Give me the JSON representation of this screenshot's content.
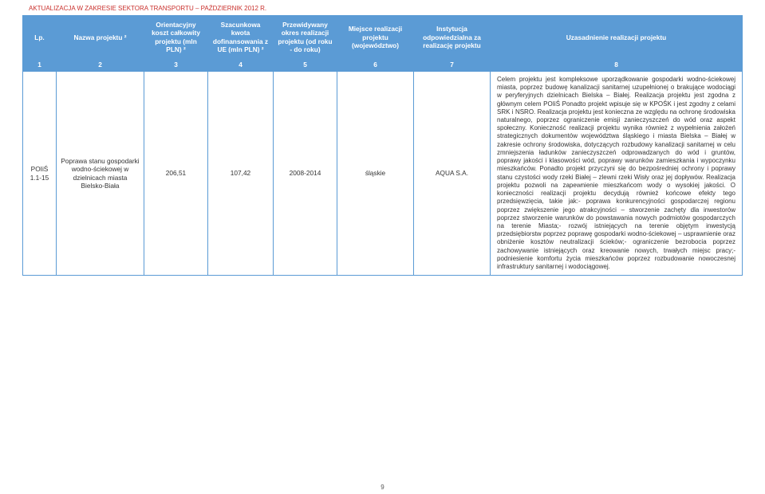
{
  "doc_title": "AKTUALIZACJA W ZAKRESIE SEKTORA TRANSPORTU – PAŹDZIERNIK 2012 R.",
  "page_number": "9",
  "headers": {
    "c1": "Lp.",
    "c2": "Nazwa projektu ²",
    "c3": "Orientacyjny koszt całkowity projektu (mln PLN) ²",
    "c4": "Szacunkowa kwota dofinansowania z UE (mln PLN) ²",
    "c5": "Przewidywany okres realizacji projektu (od roku - do roku)",
    "c6": "Miejsce realizacji projektu (województwo)",
    "c7": "Instytucja odpowiedzialna za realizację projektu",
    "c8": "Uzasadnienie realizacji projektu"
  },
  "index_row": {
    "c1": "1",
    "c2": "2",
    "c3": "3",
    "c4": "4",
    "c5": "5",
    "c6": "6",
    "c7": "7",
    "c8": "8"
  },
  "row": {
    "lp": "POIiŚ 1.1-15",
    "name": "Poprawa stanu gospodarki wodno-ściekowej w dzielnicach miasta Bielsko-Biała",
    "cost": "206,51",
    "eu": "107,42",
    "period": "2008-2014",
    "region": "śląskie",
    "inst": "AQUA S.A.",
    "justification": "Celem projektu jest kompleksowe uporządkowanie gospodarki wodno-ściekowej miasta, poprzez budowę kanalizacji sanitarnej uzupełnionej o brakujące wodociągi w peryferyjnych dzielnicach Bielska – Białej. Realizacja projektu jest zgodna z głównym celem POIiŚ Ponadto projekt wpisuje się w KPOŚK i jest zgodny z celami SRK i NSRO. Realizacja projektu jest konieczna ze względu na ochronę środowiska naturalnego, poprzez ograniczenie emisji zanieczyszczeń do wód oraz aspekt społeczny. Konieczność realizacji projektu wynika również z wypełnienia założeń strategicznych dokumentów województwa śląskiego i miasta Bielska – Białej w zakresie ochrony środowiska, dotyczących rozbudowy kanalizacji sanitarnej w celu zmniejszenia ładunków zanieczyszczeń odprowadzanych do wód i gruntów, poprawy jakości i klasowości wód, poprawy warunków zamieszkania i wypoczynku mieszkańców. Ponadto projekt przyczyni się do bezpośredniej ochrony i poprawy stanu czystości wody rzeki Białej – zlewni rzeki Wisły oraz jej dopływów. Realizacja projektu pozwoli na zapewnienie mieszkańcom wody o wysokiej jakości. O konieczności realizacji projektu decydują również końcowe efekty tego przedsięwzięcia, takie jak:- poprawa konkurencyjności gospodarczej regionu poprzez zwiększenie jego atrakcyjności – stworzenie zachęty dla inwestorów poprzez stworzenie warunków do powstawania nowych podmiotów gospodarczych na terenie Miasta;- rozwój istniejących na terenie objętym inwestycją przedsiębiorstw poprzez poprawę gospodarki wodno-ściekowej – usprawnienie oraz obniżenie kosztów neutralizacji ścieków;- ograniczenie bezrobocia poprzez zachowywanie istniejących oraz kreowanie nowych, trwałych miejsc pracy;- podniesienie komfortu życia mieszkańców poprzez rozbudowanie nowoczesnej infrastruktury sanitarnej i wodociągowej."
  }
}
